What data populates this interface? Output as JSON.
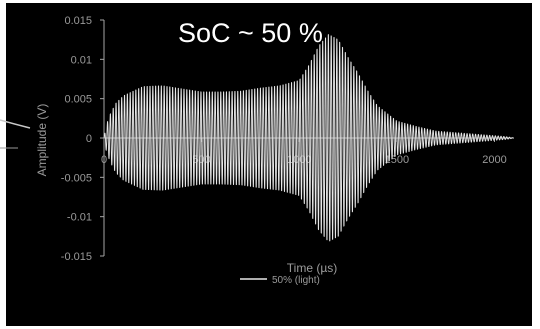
{
  "colors": {
    "background": "#000000",
    "outer_background": "#ffffff",
    "series": "#e8e8e8",
    "axis": "#a6a6a6",
    "text": "#9a9a9a",
    "annotation": "#ffffff"
  },
  "chart_data": {
    "type": "line",
    "title": "",
    "annotation": "SoC ~ 50 %",
    "xlabel": "Time (µs)",
    "ylabel": "Amplitude (V)",
    "xlim": [
      0,
      2100
    ],
    "ylim": [
      -0.015,
      0.015
    ],
    "x_ticks": [
      0,
      500,
      1000,
      1500,
      2000
    ],
    "x_tick_labels": [
      "0",
      "500",
      "1000",
      "1500",
      "2000"
    ],
    "y_ticks": [
      -0.015,
      -0.01,
      -0.005,
      0,
      0.005,
      0.01,
      0.015
    ],
    "y_tick_labels": [
      "-0.015",
      "-0.01",
      "-0.005",
      "0",
      "0.005",
      "0.01",
      "0.015"
    ],
    "grid": false,
    "legend_position": "bottom",
    "series": [
      {
        "name": "50% (light)",
        "oscillation_period_us": 14.5,
        "envelope": {
          "t": [
            0,
            10,
            30,
            60,
            100,
            200,
            300,
            400,
            500,
            600,
            700,
            800,
            900,
            1000,
            1050,
            1100,
            1150,
            1200,
            1250,
            1300,
            1350,
            1400,
            1500,
            1600,
            1700,
            1800,
            1900,
            1950,
            2000,
            2050,
            2080,
            2100
          ],
          "amplitude": [
            0.0,
            0.0015,
            0.003,
            0.0045,
            0.0055,
            0.0067,
            0.0068,
            0.0064,
            0.006,
            0.006,
            0.0061,
            0.0065,
            0.0068,
            0.0075,
            0.0095,
            0.012,
            0.0135,
            0.0128,
            0.0105,
            0.0085,
            0.0062,
            0.0042,
            0.0022,
            0.0015,
            0.0009,
            0.0007,
            0.0005,
            0.0004,
            0.0003,
            0.0002,
            0.0001,
            0.0
          ]
        }
      }
    ]
  }
}
